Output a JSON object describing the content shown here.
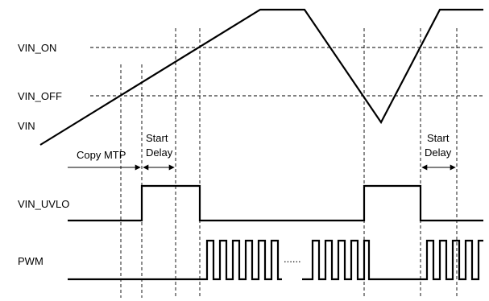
{
  "labels": {
    "vin_on": "VIN_ON",
    "vin_off": "VIN_OFF",
    "vin": "VIN",
    "vin_uvlo": "VIN_UVLO",
    "pwm": "PWM"
  },
  "annotations": {
    "copy_mtp": "Copy MTP",
    "start_delay_1_line1": "Start",
    "start_delay_1_line2": "Delay",
    "start_delay_2_line1": "Start",
    "start_delay_2_line2": "Delay",
    "pwm_ellipsis": "......"
  }
}
